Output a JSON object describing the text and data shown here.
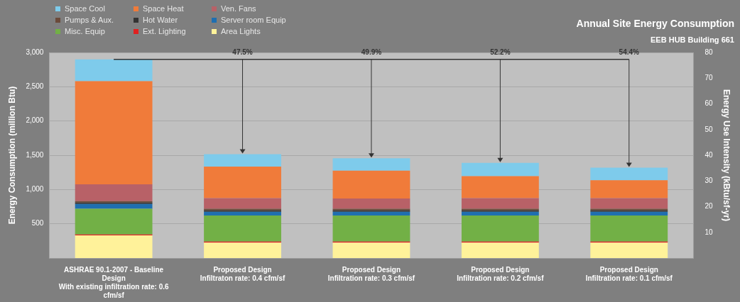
{
  "chart_data": {
    "type": "bar",
    "title": "Annual Site Energy Consumption",
    "subtitle": "EEB HUB Building 661",
    "ylabel": "Energy Consumption (million Btu)",
    "y2label": "Energy Use Intensity (kBtu/sf-yr)",
    "categories": [
      "ASHRAE 90.1-2007 - Baseline\nDesign\nWith existing infiltration rate: 0.6\ncfm/sf",
      "Proposed Design\nInfiltraton rate: 0.4 cfm/sf",
      "Proposed Design\nInfiltration rate: 0.3 cfm/sf",
      "Proposed Design\nInfiltration rate: 0.2 cfm/sf",
      "Proposed Design\nInfiltration rate: 0.1 cfm/sf"
    ],
    "stacked": true,
    "series": [
      {
        "name": "Area Lights",
        "color": "#fff29a",
        "values": [
          330,
          225,
          225,
          225,
          225
        ]
      },
      {
        "name": "Ext. Lighting",
        "color": "#e02020",
        "values": [
          15,
          15,
          15,
          15,
          15
        ]
      },
      {
        "name": "Misc. Equip",
        "color": "#72b046",
        "values": [
          375,
          380,
          380,
          380,
          380
        ]
      },
      {
        "name": "Server room Equip",
        "color": "#1f6fb0",
        "values": [
          70,
          55,
          55,
          55,
          55
        ]
      },
      {
        "name": "Hot Water",
        "color": "#333333",
        "values": [
          20,
          20,
          20,
          20,
          20
        ]
      },
      {
        "name": "Pumps & Aux.",
        "color": "#6b4a3a",
        "values": [
          20,
          25,
          25,
          25,
          25
        ]
      },
      {
        "name": "Ven. Fans",
        "color": "#b86167",
        "values": [
          245,
          155,
          150,
          155,
          155
        ]
      },
      {
        "name": "Space Heat",
        "color": "#f07b3a",
        "values": [
          1505,
          460,
          405,
          320,
          260
        ]
      },
      {
        "name": "Space Cool",
        "color": "#7ecbeb",
        "values": [
          320,
          180,
          180,
          195,
          185
        ]
      }
    ],
    "ylim": [
      0,
      3000
    ],
    "yticks": [
      {
        "value": 500,
        "label": "500"
      },
      {
        "value": 1000,
        "label": "1,000"
      },
      {
        "value": 1500,
        "label": "1,500"
      },
      {
        "value": 2000,
        "label": "2,000"
      },
      {
        "value": 2500,
        "label": "2,500"
      },
      {
        "value": 3000,
        "label": "3,000"
      }
    ],
    "y2lim": [
      0,
      80
    ],
    "y2ticks": [
      10,
      20,
      30,
      40,
      50,
      60,
      70,
      80
    ],
    "annotations": [
      {
        "text": "47.5%",
        "x": "Proposed Design\nInfiltraton rate: 0.4 cfm/sf",
        "y": 1515
      },
      {
        "text": "49.9%",
        "x": "Proposed Design\nInfiltration rate: 0.3 cfm/sf",
        "y": 1455
      },
      {
        "text": "52.2%",
        "x": "Proposed Design\nInfiltration rate: 0.2 cfm/sf",
        "y": 1390
      },
      {
        "text": "54.4%",
        "x": "Proposed Design\nInfiltration rate: 0.1 cfm/sf",
        "y": 1320
      }
    ],
    "grid": "y",
    "legend": "top left"
  }
}
